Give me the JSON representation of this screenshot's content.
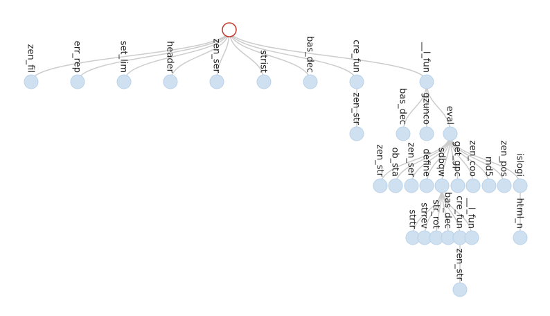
{
  "tree": {
    "root": {
      "label": "",
      "children": [
        {
          "label": "zen_fil"
        },
        {
          "label": "err_rep"
        },
        {
          "label": "set_lim"
        },
        {
          "label": "header"
        },
        {
          "label": "zen_ser"
        },
        {
          "label": "strist"
        },
        {
          "label": "bas_dec"
        },
        {
          "label": "cre_fun",
          "children": [
            {
              "label": "zen_str"
            }
          ]
        },
        {
          "label": "__l_fun",
          "children": [
            {
              "label": "bas_dec"
            },
            {
              "label": "gzunco"
            },
            {
              "label": "eval",
              "children": [
                {
                  "label": "zen_str"
                },
                {
                  "label": "ob_sta"
                },
                {
                  "label": "zen_ser"
                },
                {
                  "label": "define"
                },
                {
                  "label": "sdbqw",
                  "children": [
                    {
                      "label": "strtr"
                    },
                    {
                      "label": "strrev"
                    },
                    {
                      "label": "str_rot"
                    },
                    {
                      "label": "bas_dec"
                    },
                    {
                      "label": "cre_fun",
                      "children": [
                        {
                          "label": "zen_str"
                        }
                      ]
                    },
                    {
                      "label": "__l_fun"
                    }
                  ]
                },
                {
                  "label": "get_gpc"
                },
                {
                  "label": "zen_coo"
                },
                {
                  "label": "md5"
                },
                {
                  "label": "zen_pos"
                },
                {
                  "label": "islogi",
                  "children": [
                    {
                      "label": "html_n"
                    }
                  ]
                }
              ]
            }
          ]
        }
      ]
    }
  }
}
